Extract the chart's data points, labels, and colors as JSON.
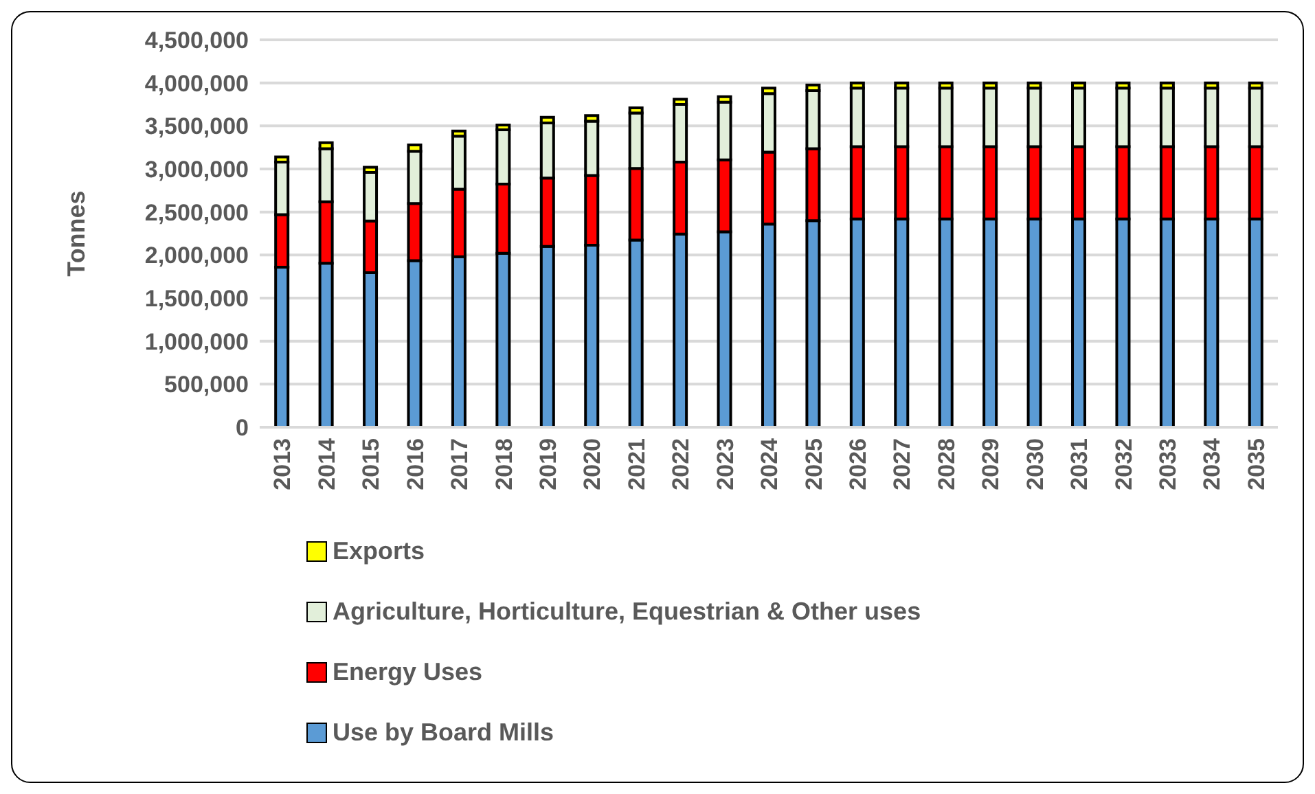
{
  "chart_data": {
    "type": "bar",
    "ylabel": "Tonnes",
    "stacked": true,
    "grid": "y",
    "legend": "bottom",
    "categories": [
      "2013",
      "2014",
      "2015",
      "2016",
      "2017",
      "2018",
      "2019",
      "2020",
      "2021",
      "2022",
      "2023",
      "2024",
      "2025",
      "2026",
      "2027",
      "2028",
      "2029",
      "2030",
      "2031",
      "2032",
      "2033",
      "2034",
      "2035"
    ],
    "ylim": [
      0,
      4500000
    ],
    "yticks": [
      {
        "value": 0,
        "label": "0"
      },
      {
        "value": 500000,
        "label": "500,000"
      },
      {
        "value": 1000000,
        "label": "1,000,000"
      },
      {
        "value": 1500000,
        "label": "1,500,000"
      },
      {
        "value": 2000000,
        "label": "2,000,000"
      },
      {
        "value": 2500000,
        "label": "2,500,000"
      },
      {
        "value": 3000000,
        "label": "3,000,000"
      },
      {
        "value": 3500000,
        "label": "3,500,000"
      },
      {
        "value": 4000000,
        "label": "4,000,000"
      },
      {
        "value": 4500000,
        "label": "4,500,000"
      }
    ],
    "series": [
      {
        "name": "Use by Board Mills",
        "color": "#5b9bd5",
        "values": [
          1860000,
          1905000,
          1795000,
          1935000,
          1980000,
          2020000,
          2100000,
          2115000,
          2175000,
          2245000,
          2270000,
          2360000,
          2400000,
          2420000,
          2420000,
          2420000,
          2420000,
          2420000,
          2420000,
          2420000,
          2420000,
          2420000,
          2420000
        ]
      },
      {
        "name": "Energy Uses",
        "color": "#ff0000",
        "values": [
          610000,
          715000,
          600000,
          665000,
          785000,
          805000,
          795000,
          810000,
          830000,
          835000,
          835000,
          835000,
          835000,
          840000,
          840000,
          840000,
          840000,
          840000,
          840000,
          840000,
          840000,
          840000,
          840000
        ]
      },
      {
        "name": "Agriculture, Horticulture, Equestrian & Other uses",
        "color": "#e2efda",
        "values": [
          610000,
          615000,
          565000,
          605000,
          615000,
          630000,
          640000,
          630000,
          645000,
          670000,
          670000,
          680000,
          675000,
          680000,
          680000,
          680000,
          680000,
          680000,
          680000,
          680000,
          680000,
          680000,
          680000
        ]
      },
      {
        "name": "Exports",
        "color": "#ffff00",
        "values": [
          60000,
          70000,
          60000,
          75000,
          60000,
          55000,
          65000,
          65000,
          60000,
          60000,
          65000,
          65000,
          65000,
          60000,
          60000,
          60000,
          60000,
          60000,
          60000,
          60000,
          60000,
          60000,
          60000
        ]
      }
    ]
  }
}
